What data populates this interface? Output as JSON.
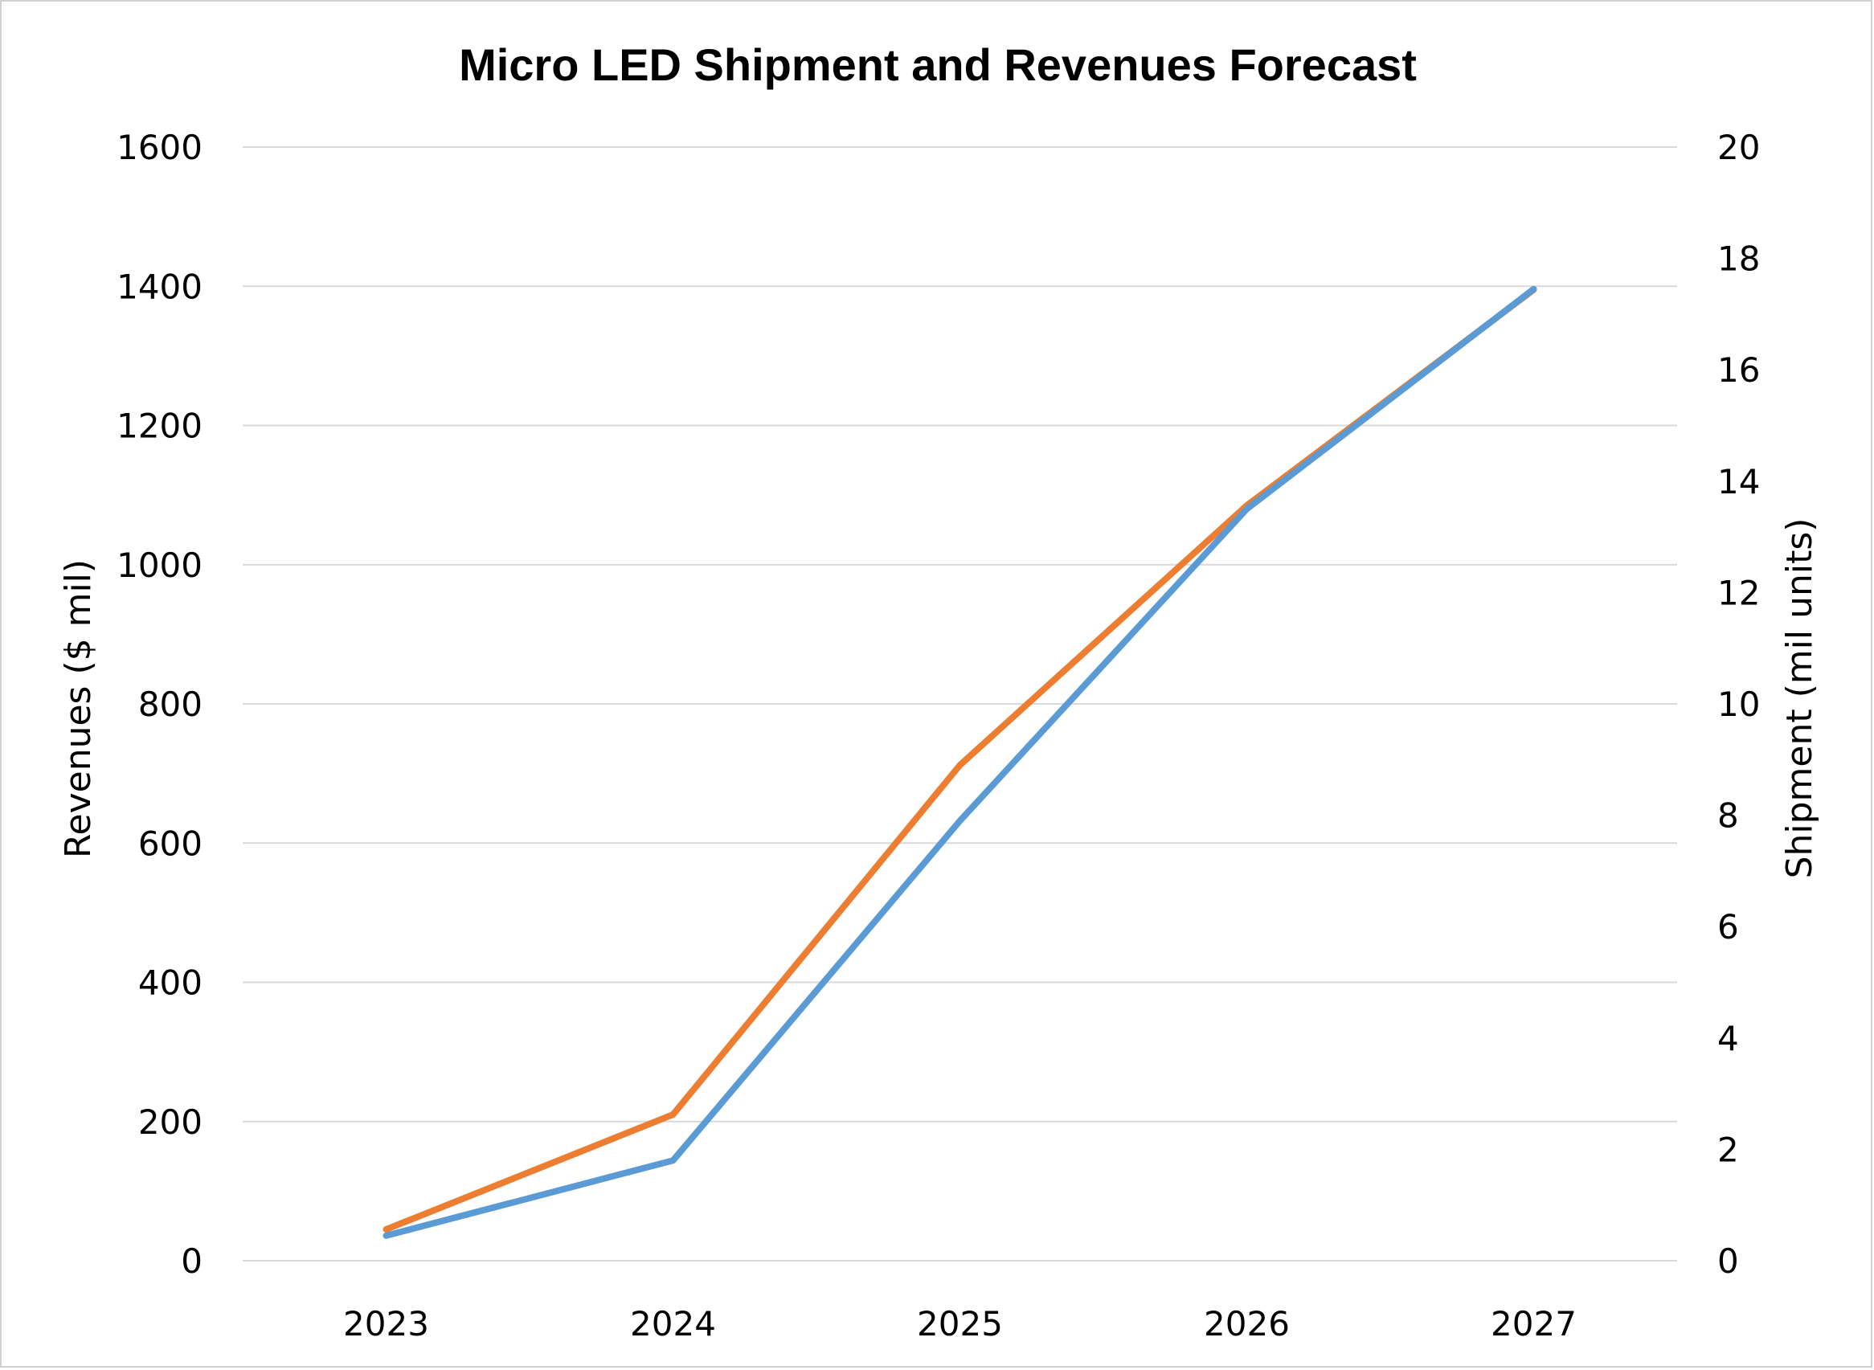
{
  "chart_data": {
    "type": "line",
    "title": "Micro LED Shipment and Revenues Forecast",
    "categories": [
      "2023",
      "2024",
      "2025",
      "2026",
      "2027"
    ],
    "y_left": {
      "label": "Revenues ($ mil)",
      "ticks": [
        "0",
        "200",
        "400",
        "600",
        "800",
        "1000",
        "1200",
        "1400",
        "1600"
      ],
      "range": [
        0,
        1600
      ]
    },
    "y_right": {
      "label": "Shipment (mil units)",
      "ticks": [
        "0",
        "2",
        "4",
        "6",
        "8",
        "10",
        "12",
        "14",
        "16",
        "18",
        "20"
      ],
      "range": [
        0,
        20
      ]
    },
    "grid": true,
    "legend": "none",
    "series": [
      {
        "axis": "left",
        "color": "#ED7D31",
        "values": [
          45,
          210,
          712,
          1085,
          1395
        ]
      },
      {
        "axis": "right",
        "color": "#5B9BD5",
        "values": [
          0.45,
          1.8,
          7.9,
          13.5,
          17.45
        ]
      }
    ]
  }
}
